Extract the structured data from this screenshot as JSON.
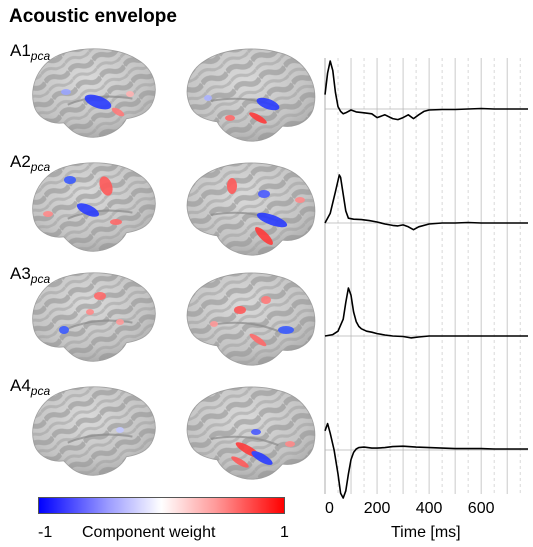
{
  "title": "Acoustic envelope",
  "rows": [
    {
      "label": "A1",
      "sub": "pca"
    },
    {
      "label": "A2",
      "sub": "pca"
    },
    {
      "label": "A3",
      "sub": "pca"
    },
    {
      "label": "A4",
      "sub": "pca"
    }
  ],
  "colorbar": {
    "title": "Component weight",
    "min_label": "-1",
    "max_label": "1",
    "colors": {
      "neg": "#0000ff",
      "zero": "#ffffff",
      "pos": "#ff0000"
    }
  },
  "chart_data": {
    "type": "line",
    "xlabel": "Time [ms]",
    "xlim": [
      0,
      780
    ],
    "xticks": [
      0,
      200,
      400,
      600
    ],
    "grid": {
      "solid_every_ms": 100,
      "dashed_every_ms": 50
    },
    "series": [
      {
        "x": [
          0,
          10,
          20,
          30,
          40,
          50,
          60,
          70,
          80,
          100,
          120,
          150,
          180,
          200,
          230,
          260,
          280,
          300,
          320,
          340,
          360,
          380,
          400,
          450,
          500,
          550,
          600,
          650,
          700,
          780
        ],
        "y": [
          0.3,
          0.75,
          1.0,
          0.8,
          0.35,
          0.05,
          -0.05,
          -0.1,
          -0.08,
          -0.02,
          -0.06,
          -0.08,
          -0.1,
          -0.18,
          -0.12,
          -0.2,
          -0.22,
          -0.18,
          -0.12,
          -0.2,
          -0.12,
          -0.05,
          -0.02,
          -0.01,
          -0.01,
          0.0,
          0.01,
          0.0,
          0.0,
          0.0
        ]
      },
      {
        "x": [
          0,
          20,
          40,
          55,
          60,
          70,
          80,
          90,
          110,
          140,
          170,
          200,
          230,
          260,
          280,
          300,
          320,
          340,
          360,
          400,
          450,
          500,
          550,
          600,
          650,
          700,
          780
        ],
        "y": [
          0.0,
          0.2,
          0.65,
          1.0,
          0.95,
          0.6,
          0.25,
          0.1,
          0.08,
          0.07,
          0.05,
          0.02,
          -0.02,
          -0.05,
          -0.06,
          -0.04,
          -0.08,
          -0.14,
          -0.08,
          -0.02,
          0.0,
          0.0,
          0.01,
          0.0,
          0.0,
          0.0,
          0.0
        ]
      },
      {
        "x": [
          0,
          30,
          50,
          70,
          80,
          90,
          100,
          110,
          120,
          130,
          140,
          160,
          180,
          200,
          230,
          260,
          300,
          330,
          360,
          400,
          450,
          500,
          550,
          600,
          650,
          700,
          780
        ],
        "y": [
          0.0,
          0.03,
          0.1,
          0.35,
          0.7,
          1.0,
          0.85,
          0.5,
          0.3,
          0.2,
          0.15,
          0.1,
          0.08,
          0.05,
          0.02,
          0.0,
          -0.01,
          -0.04,
          -0.02,
          0.0,
          0.0,
          0.0,
          0.0,
          0.0,
          0.0,
          0.0,
          0.0
        ]
      },
      {
        "x": [
          0,
          10,
          20,
          35,
          50,
          60,
          70,
          80,
          90,
          100,
          110,
          120,
          130,
          150,
          180,
          200,
          230,
          260,
          300,
          350,
          400,
          450,
          500,
          550,
          600,
          650,
          700,
          780
        ],
        "y": [
          0.4,
          0.55,
          0.35,
          0.0,
          -0.5,
          -0.9,
          -1.0,
          -0.85,
          -0.5,
          -0.2,
          -0.05,
          0.02,
          0.05,
          0.06,
          0.04,
          0.04,
          0.05,
          0.07,
          0.08,
          0.06,
          0.05,
          0.04,
          0.03,
          0.03,
          0.03,
          0.02,
          0.02,
          0.02
        ]
      }
    ]
  }
}
